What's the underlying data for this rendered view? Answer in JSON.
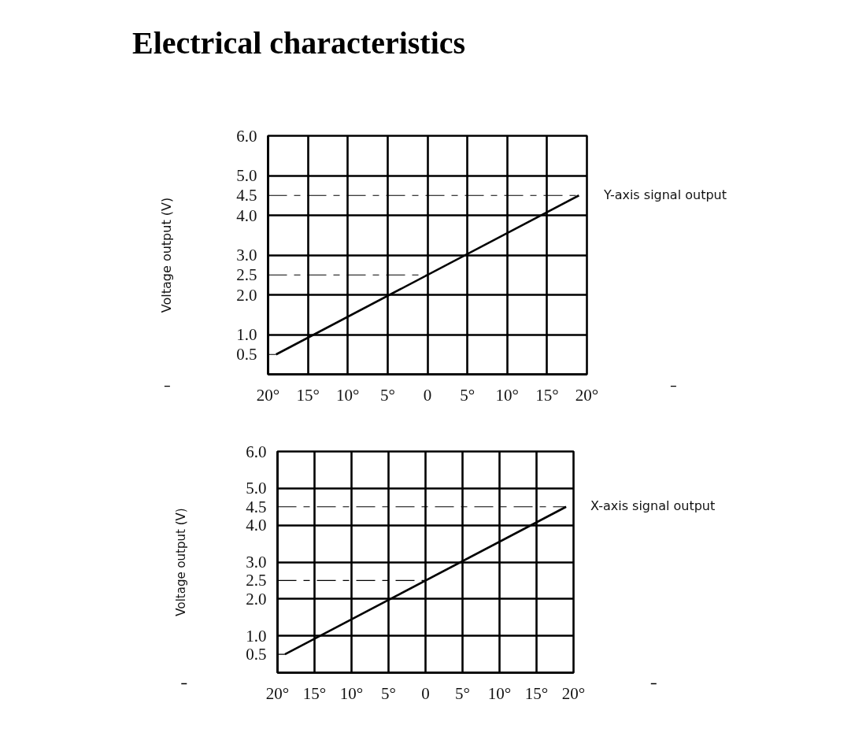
{
  "chart_data": [
    {
      "type": "line",
      "title": "Electrical characteristics",
      "ylabel": "Voltage output (V)",
      "xlim": [
        -20,
        20
      ],
      "ylim": [
        0,
        6
      ],
      "xticks": [
        {
          "value": -20,
          "label": "20°"
        },
        {
          "value": -15,
          "label": "15°"
        },
        {
          "value": -10,
          "label": "10°"
        },
        {
          "value": -5,
          "label": "5°"
        },
        0,
        {
          "value": 5,
          "label": "5°"
        },
        {
          "value": 10,
          "label": "10°"
        },
        {
          "value": 15,
          "label": "15°"
        },
        {
          "value": 20,
          "label": "20°"
        }
      ],
      "yticks": [
        0.5,
        {
          "value": 1,
          "label": "1.0"
        },
        {
          "value": 2,
          "label": "2.0"
        },
        2.5,
        {
          "value": 3,
          "label": "3.0"
        },
        {
          "value": 4,
          "label": "4.0"
        },
        4.5,
        {
          "value": 5,
          "label": "5.0"
        },
        {
          "value": 6,
          "label": "6.0"
        }
      ],
      "grid": true,
      "series": [
        {
          "name": "Y-axis signal output",
          "color": "#000000",
          "x": [
            -19,
            19
          ],
          "values": [
            0.5,
            4.5
          ]
        },
        {
          "color": "#000000",
          "x": [
            -20,
            -19
          ],
          "values": [
            0.5,
            0.5
          ],
          "line_style": "dashed"
        },
        {
          "color": "#000000",
          "x": [
            -20,
            0
          ],
          "values": [
            2.5,
            2.5
          ],
          "line_style": "dashed"
        },
        {
          "color": "#000000",
          "x": [
            -20,
            19
          ],
          "values": [
            4.5,
            4.5
          ],
          "line_style": "dashed"
        }
      ]
    },
    {
      "type": "line",
      "ylabel": "Voltage output (V)",
      "xlim": [
        -20,
        20
      ],
      "ylim": [
        0,
        6
      ],
      "xticks": [
        {
          "value": -20,
          "label": "20°"
        },
        {
          "value": -15,
          "label": "15°"
        },
        {
          "value": -10,
          "label": "10°"
        },
        {
          "value": -5,
          "label": "5°"
        },
        0,
        {
          "value": 5,
          "label": "5°"
        },
        {
          "value": 10,
          "label": "10°"
        },
        {
          "value": 15,
          "label": "15°"
        },
        {
          "value": 20,
          "label": "20°"
        }
      ],
      "yticks": [
        0.5,
        {
          "value": 1,
          "label": "1.0"
        },
        {
          "value": 2,
          "label": "2.0"
        },
        2.5,
        {
          "value": 3,
          "label": "3.0"
        },
        {
          "value": 4,
          "label": "4.0"
        },
        4.5,
        {
          "value": 5,
          "label": "5.0"
        },
        {
          "value": 6,
          "label": "6.0"
        }
      ],
      "grid": true,
      "series": [
        {
          "name": "X-axis signal output",
          "color": "#000000",
          "x": [
            -19,
            19
          ],
          "values": [
            0.5,
            4.5
          ]
        },
        {
          "color": "#000000",
          "x": [
            -20,
            -19
          ],
          "values": [
            0.5,
            0.5
          ],
          "line_style": "dashed"
        },
        {
          "color": "#000000",
          "x": [
            -20,
            0
          ],
          "values": [
            2.5,
            2.5
          ],
          "line_style": "dashed"
        },
        {
          "color": "#000000",
          "x": [
            -20,
            19
          ],
          "values": [
            4.5,
            4.5
          ],
          "line_style": "dashed"
        }
      ]
    }
  ]
}
